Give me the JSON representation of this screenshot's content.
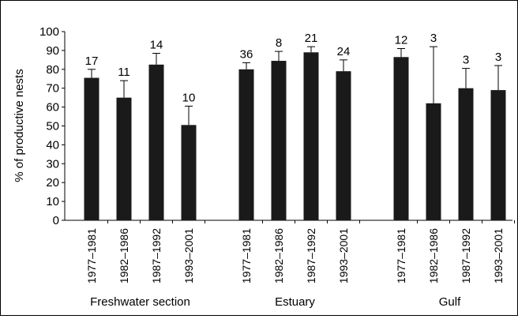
{
  "chart_data": {
    "type": "bar",
    "ylabel": "% of productive nests",
    "ylim": [
      0,
      100
    ],
    "yticks": [
      0,
      10,
      20,
      30,
      40,
      50,
      60,
      70,
      80,
      90,
      100
    ],
    "grid": false,
    "bar_color": "#1a1a1a",
    "groups": [
      {
        "label": "Freshwater section",
        "categories": [
          "1977–1981",
          "1982–1986",
          "1987–1992",
          "1993–2001"
        ],
        "values": [
          75.5,
          65,
          82.5,
          50.5
        ],
        "error_upper": [
          80,
          74,
          88.5,
          60.5
        ],
        "n": [
          "17",
          "11",
          "14",
          "10"
        ]
      },
      {
        "label": "Estuary",
        "categories": [
          "1977–1981",
          "1982–1986",
          "1987–1992",
          "1993–2001"
        ],
        "values": [
          80,
          84.5,
          89,
          79
        ],
        "error_upper": [
          83.5,
          89.5,
          92,
          85
        ],
        "n": [
          "36",
          "8",
          "21",
          "24"
        ]
      },
      {
        "label": "Gulf",
        "categories": [
          "1977–1981",
          "1982–1986",
          "1987–1992",
          "1993–2001"
        ],
        "values": [
          86.5,
          62,
          70,
          69
        ],
        "error_upper": [
          91,
          92,
          80.5,
          82
        ],
        "n": [
          "12",
          "3",
          "3",
          "3"
        ]
      }
    ]
  }
}
